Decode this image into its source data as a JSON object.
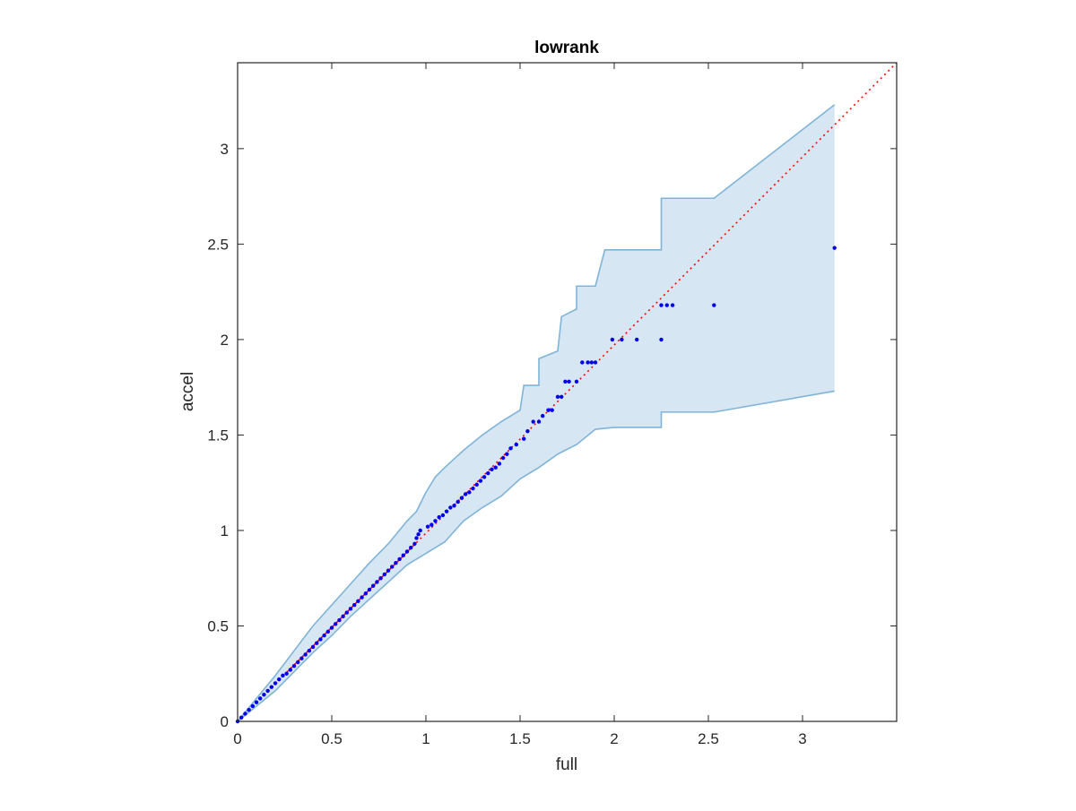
{
  "chart_data": {
    "type": "scatter",
    "title": "lowrank",
    "xlabel": "full",
    "ylabel": "accel",
    "xlim": [
      0,
      3.5
    ],
    "ylim": [
      0,
      3.45
    ],
    "xticks": [
      "0",
      "0.5",
      "1",
      "1.5",
      "2",
      "2.5",
      "3"
    ],
    "yticks": [
      "0",
      "0.5",
      "1",
      "1.5",
      "2",
      "2.5",
      "3"
    ],
    "grid": false,
    "legend": "none",
    "colors": {
      "points": "#0000ee",
      "band_fill": "#d6e6f2",
      "band_edge": "#7fb4d8",
      "reference_line": "#ff0000",
      "axes": "#262626"
    },
    "reference_line": {
      "x": [
        0,
        3.5
      ],
      "y": [
        0,
        3.5
      ],
      "style": "dotted"
    },
    "band": {
      "upper": [
        [
          0,
          0
        ],
        [
          0.1,
          0.12
        ],
        [
          0.2,
          0.24
        ],
        [
          0.3,
          0.37
        ],
        [
          0.4,
          0.5
        ],
        [
          0.5,
          0.61
        ],
        [
          0.6,
          0.72
        ],
        [
          0.7,
          0.83
        ],
        [
          0.8,
          0.93
        ],
        [
          0.9,
          1.05
        ],
        [
          0.95,
          1.1
        ],
        [
          0.96,
          1.12
        ],
        [
          1.0,
          1.2
        ],
        [
          1.05,
          1.28
        ],
        [
          1.1,
          1.33
        ],
        [
          1.2,
          1.42
        ],
        [
          1.3,
          1.5
        ],
        [
          1.4,
          1.57
        ],
        [
          1.5,
          1.63
        ],
        [
          1.52,
          1.76
        ],
        [
          1.6,
          1.76
        ],
        [
          1.6,
          1.9
        ],
        [
          1.7,
          1.94
        ],
        [
          1.72,
          2.12
        ],
        [
          1.8,
          2.16
        ],
        [
          1.8,
          2.28
        ],
        [
          1.9,
          2.28
        ],
        [
          1.95,
          2.47
        ],
        [
          2.1,
          2.47
        ],
        [
          2.25,
          2.47
        ],
        [
          2.25,
          2.74
        ],
        [
          2.42,
          2.74
        ],
        [
          2.53,
          2.74
        ],
        [
          3.17,
          3.23
        ]
      ],
      "lower": [
        [
          0,
          0
        ],
        [
          0.1,
          0.08
        ],
        [
          0.2,
          0.16
        ],
        [
          0.3,
          0.26
        ],
        [
          0.4,
          0.36
        ],
        [
          0.5,
          0.45
        ],
        [
          0.6,
          0.55
        ],
        [
          0.7,
          0.64
        ],
        [
          0.8,
          0.73
        ],
        [
          0.9,
          0.82
        ],
        [
          1.0,
          0.88
        ],
        [
          1.1,
          0.94
        ],
        [
          1.2,
          1.05
        ],
        [
          1.3,
          1.12
        ],
        [
          1.4,
          1.18
        ],
        [
          1.5,
          1.27
        ],
        [
          1.6,
          1.33
        ],
        [
          1.7,
          1.4
        ],
        [
          1.8,
          1.45
        ],
        [
          1.9,
          1.53
        ],
        [
          2.0,
          1.54
        ],
        [
          2.25,
          1.54
        ],
        [
          2.25,
          1.62
        ],
        [
          2.53,
          1.62
        ],
        [
          3.17,
          1.73
        ]
      ]
    },
    "points": {
      "x": [
        0,
        0.02,
        0.04,
        0.06,
        0.08,
        0.1,
        0.12,
        0.14,
        0.16,
        0.18,
        0.2,
        0.22,
        0.24,
        0.26,
        0.28,
        0.3,
        0.32,
        0.34,
        0.36,
        0.38,
        0.4,
        0.42,
        0.44,
        0.46,
        0.48,
        0.5,
        0.52,
        0.54,
        0.56,
        0.58,
        0.6,
        0.62,
        0.64,
        0.66,
        0.68,
        0.7,
        0.72,
        0.74,
        0.76,
        0.78,
        0.8,
        0.82,
        0.84,
        0.86,
        0.88,
        0.9,
        0.92,
        0.94,
        0.95,
        0.96,
        0.97,
        1.01,
        1.03,
        1.05,
        1.07,
        1.09,
        1.11,
        1.13,
        1.15,
        1.17,
        1.19,
        1.21,
        1.23,
        1.25,
        1.27,
        1.29,
        1.31,
        1.33,
        1.35,
        1.37,
        1.39,
        1.41,
        1.43,
        1.45,
        1.48,
        1.52,
        1.54,
        1.57,
        1.6,
        1.62,
        1.65,
        1.67,
        1.7,
        1.72,
        1.74,
        1.76,
        1.8,
        1.83,
        1.86,
        1.88,
        1.9,
        1.99,
        2.04,
        2.12,
        2.25,
        2.25,
        2.28,
        2.31,
        2.53,
        3.17
      ],
      "y": [
        0,
        0.02,
        0.04,
        0.06,
        0.08,
        0.1,
        0.12,
        0.14,
        0.16,
        0.18,
        0.2,
        0.22,
        0.24,
        0.25,
        0.27,
        0.29,
        0.31,
        0.33,
        0.35,
        0.37,
        0.39,
        0.41,
        0.43,
        0.45,
        0.47,
        0.49,
        0.51,
        0.53,
        0.55,
        0.57,
        0.59,
        0.61,
        0.63,
        0.65,
        0.67,
        0.69,
        0.71,
        0.73,
        0.75,
        0.77,
        0.79,
        0.81,
        0.83,
        0.85,
        0.87,
        0.89,
        0.91,
        0.93,
        0.96,
        0.98,
        1.0,
        1.02,
        1.03,
        1.05,
        1.07,
        1.08,
        1.1,
        1.12,
        1.13,
        1.15,
        1.17,
        1.19,
        1.2,
        1.22,
        1.24,
        1.26,
        1.28,
        1.3,
        1.32,
        1.33,
        1.35,
        1.38,
        1.4,
        1.43,
        1.45,
        1.48,
        1.52,
        1.57,
        1.57,
        1.6,
        1.63,
        1.63,
        1.7,
        1.7,
        1.78,
        1.78,
        1.78,
        1.88,
        1.88,
        1.88,
        1.88,
        2.0,
        2.0,
        2.0,
        2.0,
        2.18,
        2.18,
        2.18,
        2.18,
        2.48
      ]
    }
  }
}
